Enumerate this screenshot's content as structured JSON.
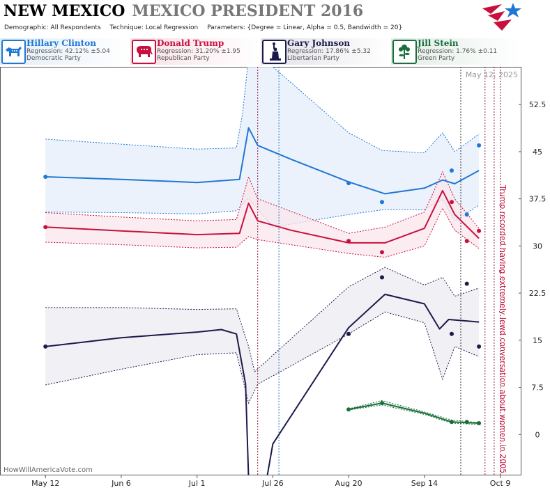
{
  "header": {
    "state": "NEW MEXICO",
    "race": "MEXICO PRESIDENT 2016",
    "demographic_label": "Demographic:",
    "demographic_value": "All Respondents",
    "technique_label": "Technique:",
    "technique_value": "Local Regression",
    "parameters_label": "Parameters:",
    "parameters_value": "{Degree = Linear, Alpha = 0.5, Bandwidth = 20}"
  },
  "candidates": [
    {
      "name": "Hillary Clinton",
      "regression": "Regression: 42.12% ±5.04",
      "party": "Democratic Party",
      "color": "#1f77d4",
      "icon": "donkey-icon"
    },
    {
      "name": "Donald Trump",
      "regression": "Regression: 31.20% ±1.95",
      "party": "Republican Party",
      "color": "#c8103e",
      "icon": "elephant-icon"
    },
    {
      "name": "Gary Johnson",
      "regression": "Regression: 17.86% ±5.32",
      "party": "Libertarian Party",
      "color": "#1b1a4a",
      "icon": "statue-of-liberty-icon"
    },
    {
      "name": "Jill Stein",
      "regression": "Regression: 1.76% ±0.11",
      "party": "Green Party",
      "color": "#1a6e3c",
      "icon": "flower-icon"
    }
  ],
  "chart_data": {
    "type": "line",
    "date_stamp": "May 12, 2025",
    "watermark": "HowWillAmericaVote.com",
    "annotation": "Trump recorded having extremely lewd conversation about women in 2005",
    "x_ticks": [
      "May 12",
      "Jun 6",
      "Jul 1",
      "Jul 26",
      "Aug 20",
      "Sep 14",
      "Oct 9"
    ],
    "y_ticks": [
      "0",
      "7.5",
      "15",
      "22.5",
      "30",
      "37.5",
      "45",
      "52.5"
    ],
    "xlim": [
      "2016-04-27",
      "2016-10-16"
    ],
    "ylim": [
      -6.5,
      58.5
    ],
    "grid": false,
    "event_lines": [
      {
        "date": "2016-07-21",
        "color": "#8b1a3a"
      },
      {
        "date": "2016-07-28",
        "color": "#1f77d4"
      },
      {
        "date": "2016-09-26",
        "color": "#333333"
      },
      {
        "date": "2016-10-04",
        "color": "#8b1a3a"
      },
      {
        "date": "2016-10-07",
        "color": "#8b1a3a"
      },
      {
        "date": "2016-10-09",
        "color": "#8b1a3a"
      }
    ],
    "series": [
      {
        "name": "Hillary Clinton",
        "color": "#1f77d4",
        "band_fill": "#e6eef9",
        "line": [
          [
            "2016-05-12",
            41.0
          ],
          [
            "2016-06-06",
            40.6
          ],
          [
            "2016-07-01",
            40.1
          ],
          [
            "2016-07-15",
            40.6
          ],
          [
            "2016-07-18",
            48.8
          ],
          [
            "2016-07-21",
            46.0
          ],
          [
            "2016-08-01",
            43.8
          ],
          [
            "2016-08-20",
            40.2
          ],
          [
            "2016-09-01",
            38.3
          ],
          [
            "2016-09-14",
            39.2
          ],
          [
            "2016-09-20",
            40.5
          ],
          [
            "2016-09-24",
            39.9
          ],
          [
            "2016-10-02",
            42.0
          ]
        ],
        "upper": [
          [
            "2016-05-12",
            47.0
          ],
          [
            "2016-06-06",
            46.2
          ],
          [
            "2016-07-01",
            45.4
          ],
          [
            "2016-07-14",
            45.6
          ],
          [
            "2016-07-16",
            51.0
          ],
          [
            "2016-07-18",
            60.0
          ],
          [
            "2016-07-26",
            58.5
          ],
          [
            "2016-08-20",
            48.0
          ],
          [
            "2016-08-31",
            45.2
          ],
          [
            "2016-09-14",
            44.8
          ],
          [
            "2016-09-20",
            48.0
          ],
          [
            "2016-09-24",
            45.0
          ],
          [
            "2016-10-02",
            47.8
          ]
        ],
        "lower": [
          [
            "2016-05-12",
            35.4
          ],
          [
            "2016-06-06",
            35.3
          ],
          [
            "2016-07-01",
            35.1
          ],
          [
            "2016-07-14",
            35.6
          ],
          [
            "2016-07-18",
            37.6
          ],
          [
            "2016-07-26",
            33.0
          ],
          [
            "2016-08-20",
            35.0
          ],
          [
            "2016-09-01",
            35.8
          ],
          [
            "2016-09-14",
            35.8
          ],
          [
            "2016-09-20",
            37.4
          ],
          [
            "2016-09-24",
            34.0
          ],
          [
            "2016-10-02",
            36.5
          ]
        ],
        "points": [
          [
            "2016-05-12",
            41.0
          ],
          [
            "2016-08-20",
            40.0
          ],
          [
            "2016-08-31",
            37.0
          ],
          [
            "2016-09-23",
            42.0
          ],
          [
            "2016-09-28",
            35.0
          ],
          [
            "2016-10-02",
            46.0
          ]
        ]
      },
      {
        "name": "Donald Trump",
        "color": "#c8103e",
        "band_fill": "#f9e6ec",
        "line": [
          [
            "2016-05-12",
            33.0
          ],
          [
            "2016-06-06",
            32.4
          ],
          [
            "2016-07-01",
            31.8
          ],
          [
            "2016-07-15",
            32.0
          ],
          [
            "2016-07-18",
            36.8
          ],
          [
            "2016-07-21",
            34.0
          ],
          [
            "2016-08-01",
            32.5
          ],
          [
            "2016-08-20",
            30.5
          ],
          [
            "2016-09-01",
            30.5
          ],
          [
            "2016-09-14",
            32.8
          ],
          [
            "2016-09-20",
            38.8
          ],
          [
            "2016-09-24",
            35.0
          ],
          [
            "2016-10-02",
            31.2
          ]
        ],
        "upper": [
          [
            "2016-05-12",
            35.3
          ],
          [
            "2016-06-06",
            34.6
          ],
          [
            "2016-07-01",
            34.0
          ],
          [
            "2016-07-14",
            34.2
          ],
          [
            "2016-07-18",
            41.0
          ],
          [
            "2016-07-21",
            37.5
          ],
          [
            "2016-08-20",
            32.0
          ],
          [
            "2016-09-01",
            33.0
          ],
          [
            "2016-09-14",
            35.4
          ],
          [
            "2016-09-20",
            41.8
          ],
          [
            "2016-09-24",
            37.5
          ],
          [
            "2016-10-02",
            32.8
          ]
        ],
        "lower": [
          [
            "2016-05-12",
            30.6
          ],
          [
            "2016-06-06",
            30.2
          ],
          [
            "2016-07-01",
            29.7
          ],
          [
            "2016-07-14",
            29.8
          ],
          [
            "2016-07-18",
            31.5
          ],
          [
            "2016-07-21",
            31.0
          ],
          [
            "2016-08-20",
            28.8
          ],
          [
            "2016-09-01",
            28.2
          ],
          [
            "2016-09-14",
            30.0
          ],
          [
            "2016-09-20",
            36.0
          ],
          [
            "2016-09-24",
            32.5
          ],
          [
            "2016-10-02",
            29.6
          ]
        ],
        "points": [
          [
            "2016-05-12",
            33.0
          ],
          [
            "2016-08-20",
            30.8
          ],
          [
            "2016-08-31",
            29.0
          ],
          [
            "2016-09-23",
            37.0
          ],
          [
            "2016-09-28",
            30.8
          ],
          [
            "2016-10-02",
            32.4
          ]
        ]
      },
      {
        "name": "Gary Johnson",
        "color": "#1b1a4a",
        "band_fill": "#ebebf1",
        "line": [
          [
            "2016-05-12",
            14.0
          ],
          [
            "2016-06-06",
            15.4
          ],
          [
            "2016-07-01",
            16.3
          ],
          [
            "2016-07-09",
            16.7
          ],
          [
            "2016-07-14",
            16.0
          ],
          [
            "2016-07-17",
            8.0
          ],
          [
            "2016-07-18",
            -7.0
          ],
          [
            "2016-07-24",
            -7.0
          ],
          [
            "2016-07-26",
            -1.5
          ],
          [
            "2016-08-20",
            17.0
          ],
          [
            "2016-09-01",
            22.3
          ],
          [
            "2016-09-14",
            20.8
          ],
          [
            "2016-09-19",
            16.8
          ],
          [
            "2016-09-22",
            18.3
          ],
          [
            "2016-10-02",
            17.9
          ]
        ],
        "upper": [
          [
            "2016-05-12",
            20.2
          ],
          [
            "2016-06-06",
            20.2
          ],
          [
            "2016-07-01",
            19.9
          ],
          [
            "2016-07-14",
            20.0
          ],
          [
            "2016-07-18",
            14.0
          ],
          [
            "2016-07-20",
            10.0
          ],
          [
            "2016-08-20",
            23.5
          ],
          [
            "2016-09-01",
            26.6
          ],
          [
            "2016-09-14",
            23.8
          ],
          [
            "2016-09-20",
            25.0
          ],
          [
            "2016-09-24",
            22.0
          ],
          [
            "2016-10-02",
            23.3
          ]
        ],
        "lower": [
          [
            "2016-05-12",
            7.9
          ],
          [
            "2016-06-06",
            10.4
          ],
          [
            "2016-07-01",
            12.7
          ],
          [
            "2016-07-14",
            13.0
          ],
          [
            "2016-07-18",
            5.0
          ],
          [
            "2016-07-21",
            8.0
          ],
          [
            "2016-08-20",
            16.0
          ],
          [
            "2016-09-01",
            19.5
          ],
          [
            "2016-09-14",
            17.8
          ],
          [
            "2016-09-20",
            8.8
          ],
          [
            "2016-09-24",
            14.0
          ],
          [
            "2016-10-02",
            12.4
          ]
        ],
        "points": [
          [
            "2016-05-12",
            14.0
          ],
          [
            "2016-08-20",
            16.0
          ],
          [
            "2016-08-31",
            25.0
          ],
          [
            "2016-09-23",
            16.0
          ],
          [
            "2016-09-28",
            24.0
          ],
          [
            "2016-10-02",
            14.0
          ]
        ]
      },
      {
        "name": "Jill Stein",
        "color": "#1a6e3c",
        "band_fill": "#e6f2ea",
        "line": [
          [
            "2016-08-20",
            4.0
          ],
          [
            "2016-08-31",
            5.0
          ],
          [
            "2016-09-14",
            3.4
          ],
          [
            "2016-09-23",
            2.0
          ],
          [
            "2016-10-02",
            1.8
          ]
        ],
        "upper": [
          [
            "2016-08-20",
            4.1
          ],
          [
            "2016-08-31",
            5.4
          ],
          [
            "2016-09-14",
            3.6
          ],
          [
            "2016-09-23",
            2.3
          ],
          [
            "2016-10-02",
            1.9
          ]
        ],
        "lower": [
          [
            "2016-08-20",
            3.9
          ],
          [
            "2016-08-31",
            4.7
          ],
          [
            "2016-09-14",
            3.2
          ],
          [
            "2016-09-23",
            1.8
          ],
          [
            "2016-10-02",
            1.6
          ]
        ],
        "points": [
          [
            "2016-08-20",
            4.0
          ],
          [
            "2016-08-31",
            5.0
          ],
          [
            "2016-09-23",
            2.0
          ],
          [
            "2016-09-28",
            2.0
          ],
          [
            "2016-10-02",
            1.8
          ]
        ]
      }
    ]
  }
}
